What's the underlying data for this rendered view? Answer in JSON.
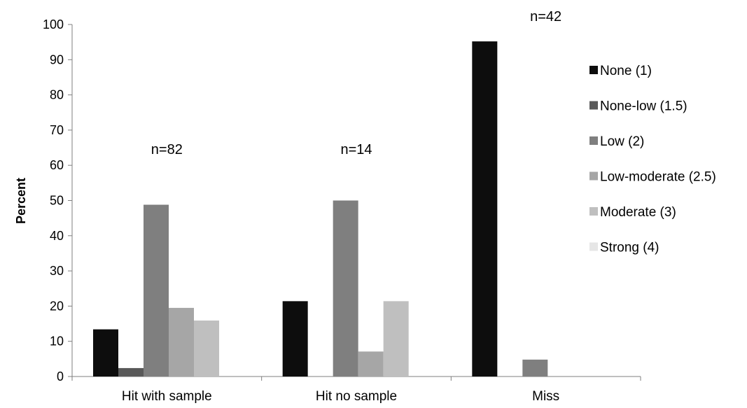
{
  "chart_data": {
    "type": "bar",
    "title": "",
    "xlabel": "",
    "ylabel": "Percent",
    "ylim": [
      0,
      100
    ],
    "yticks": [
      0,
      10,
      20,
      30,
      40,
      50,
      60,
      70,
      80,
      90,
      100
    ],
    "categories": [
      "Hit with sample",
      "Hit no sample",
      "Miss"
    ],
    "series": [
      {
        "name": "None (1)",
        "color": "#0d0d0d",
        "values": [
          13.4,
          21.4,
          95.2
        ]
      },
      {
        "name": "None-low (1.5)",
        "color": "#595959",
        "values": [
          2.4,
          0,
          0
        ]
      },
      {
        "name": "Low (2)",
        "color": "#7f7f7f",
        "values": [
          48.8,
          50.0,
          4.8
        ]
      },
      {
        "name": "Low-moderate (2.5)",
        "color": "#a6a6a6",
        "values": [
          19.5,
          7.1,
          0
        ]
      },
      {
        "name": "Moderate (3)",
        "color": "#bfbfbf",
        "values": [
          15.9,
          21.4,
          0
        ]
      },
      {
        "name": "Strong (4)",
        "color": "#e6e6e6",
        "values": [
          0,
          0,
          0
        ]
      }
    ],
    "annotations": [
      {
        "category": "Hit with sample",
        "text": "n=82"
      },
      {
        "category": "Hit no sample",
        "text": "n=14"
      },
      {
        "category": "Miss",
        "text": "n=42"
      }
    ],
    "legend_position": "right",
    "grid": false
  }
}
